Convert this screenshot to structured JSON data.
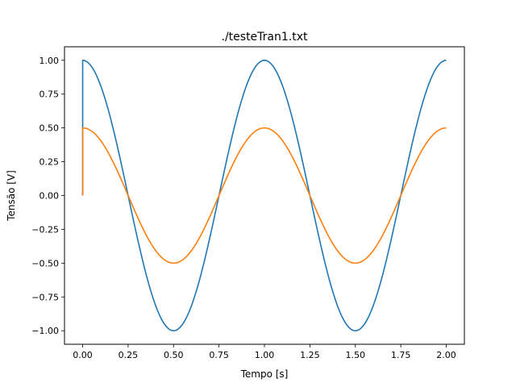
{
  "chart_data": {
    "type": "line",
    "title": "./testeTran1.txt",
    "xlabel": "Tempo [s]",
    "ylabel": "Tensão [V]",
    "xlim": [
      -0.1,
      2.1
    ],
    "ylim": [
      -1.1,
      1.1
    ],
    "x_ticks": [
      0.0,
      0.25,
      0.5,
      0.75,
      1.0,
      1.25,
      1.5,
      1.75,
      2.0
    ],
    "x_tick_labels": [
      "0.00",
      "0.25",
      "0.50",
      "0.75",
      "1.00",
      "1.25",
      "1.50",
      "1.75",
      "2.00"
    ],
    "y_ticks": [
      -1.0,
      -0.75,
      -0.5,
      -0.25,
      0.0,
      0.25,
      0.5,
      0.75,
      1.0
    ],
    "y_tick_labels": [
      "−1.00",
      "−0.75",
      "−0.50",
      "−0.25",
      "0.00",
      "0.25",
      "0.50",
      "0.75",
      "1.00"
    ],
    "grid": false,
    "legend": "none",
    "series": [
      {
        "color": "#1f77b4",
        "x": [
          0,
          0,
          0.125,
          0.25,
          0.375,
          0.5,
          0.625,
          0.75,
          0.875,
          1.0,
          1.125,
          1.25,
          1.375,
          1.5,
          1.625,
          1.75,
          1.875,
          2.0
        ],
        "y": [
          0,
          1.0,
          0.707,
          0.0,
          -0.707,
          -1.0,
          -0.707,
          0.0,
          0.707,
          1.0,
          0.707,
          0.0,
          -0.707,
          -1.0,
          -0.707,
          0.0,
          0.707,
          1.0
        ]
      },
      {
        "color": "#ff7f0e",
        "x": [
          0,
          0,
          0.125,
          0.25,
          0.375,
          0.5,
          0.625,
          0.75,
          0.875,
          1.0,
          1.125,
          1.25,
          1.375,
          1.5,
          1.625,
          1.75,
          1.875,
          2.0
        ],
        "y": [
          0,
          0.5,
          0.354,
          0.0,
          -0.354,
          -0.5,
          -0.354,
          0.0,
          0.354,
          0.5,
          0.354,
          0.0,
          -0.354,
          -0.5,
          -0.354,
          0.0,
          0.354,
          0.5
        ]
      }
    ]
  }
}
